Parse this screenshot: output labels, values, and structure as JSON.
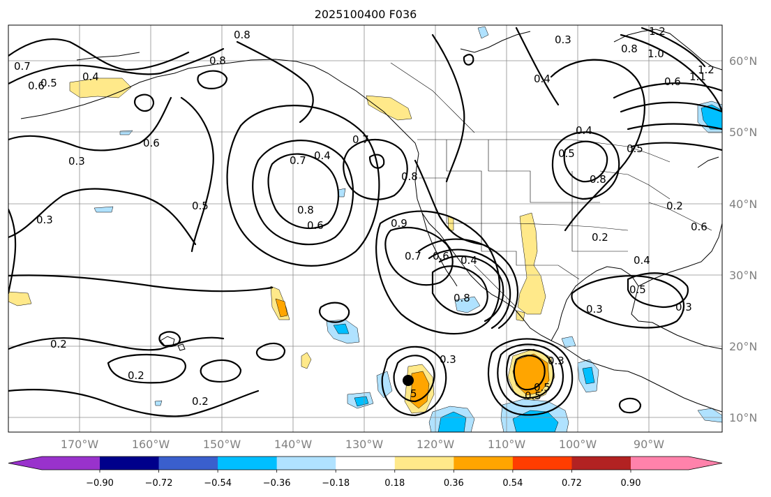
{
  "title": "2025100400 F036",
  "lon_labels": [
    "170°W",
    "160°W",
    "150°W",
    "140°W",
    "130°W",
    "120°W",
    "110°W",
    "100°W",
    "90°W"
  ],
  "lat_labels": [
    "60°N",
    "50°N",
    "40°N",
    "30°N",
    "20°N",
    "10°N"
  ],
  "colorbar": {
    "colors": [
      "#9932CC",
      "#00008B",
      "#3A5FCD",
      "#00BFFF",
      "#B0E2FF",
      "#FFFFFF",
      "#FFE98A",
      "#FFA500",
      "#FF3D00",
      "#B22222",
      "#FF82AB"
    ],
    "tick_labels": [
      "−0.90",
      "−0.72",
      "−0.54",
      "−0.36",
      "−0.18",
      "0.18",
      "0.36",
      "0.54",
      "0.72",
      "0.90"
    ]
  },
  "contour_labels": [
    "0.7",
    "0.6",
    "0.8",
    "0.8",
    "0.5",
    "0.4",
    "0.3",
    "0.6",
    "0.5",
    "0.3",
    "0.7",
    "0.4",
    "0.7",
    "0.8",
    "0.8",
    "0.6",
    "0.7",
    "0.6",
    "0.4",
    "0.8",
    "0.3",
    "0.4",
    "0.4",
    "0.5",
    "0.8",
    "0.5",
    "0.6",
    "0.2",
    "0.4",
    "0.5",
    "0.3",
    "0.2",
    "0.2",
    "0.2",
    "0.3",
    "0.5",
    "0.5",
    "0.3",
    "0.3",
    "1.2",
    "1.0",
    "0.8",
    "0.9",
    "1.1",
    "1.2",
    "0.6",
    "0.2"
  ],
  "marker_label": "5"
}
